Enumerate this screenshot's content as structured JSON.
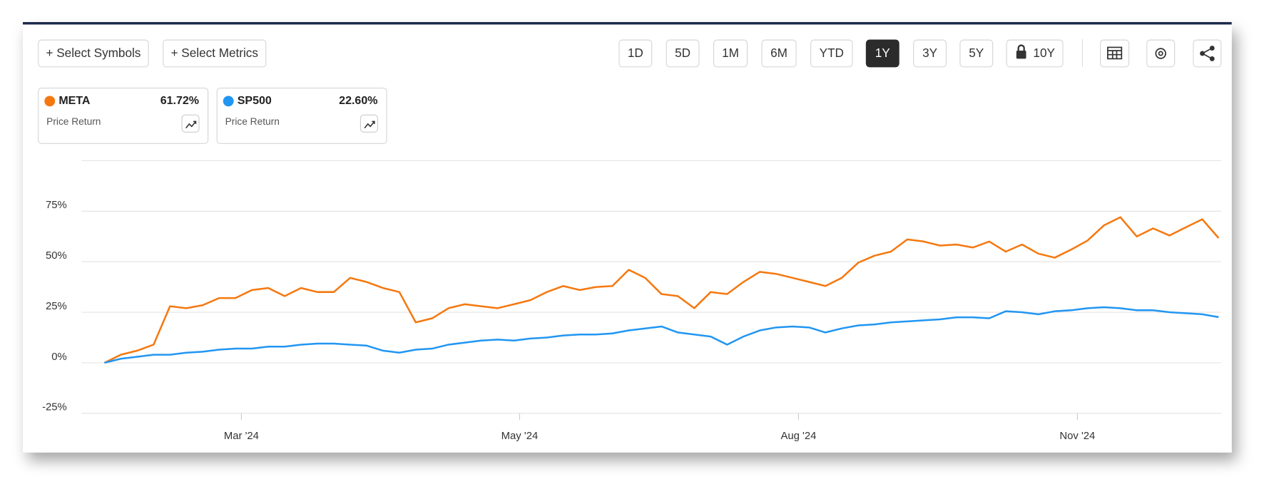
{
  "toolbar": {
    "buttons": [
      "+ Select Symbols",
      "+ Select Metrics"
    ],
    "periods": [
      "1D",
      "5D",
      "1M",
      "6M",
      "YTD",
      "1Y",
      "3Y",
      "5Y",
      "10Y"
    ],
    "selected": "1Y"
  },
  "chart_data": {
    "type": "line",
    "xlim": [
      0,
      68
    ],
    "xticks": [
      {
        "value": 8.36,
        "label": "Mar '24"
      },
      {
        "value": 25.34,
        "label": "May '24"
      },
      {
        "value": 42.36,
        "label": "Aug '24"
      },
      {
        "value": 59.38,
        "label": "Nov '24"
      }
    ],
    "ylim": [
      -25,
      100
    ],
    "yticks": [
      {
        "value": -25,
        "label": "-25%"
      },
      {
        "value": 0,
        "label": "0%"
      },
      {
        "value": 25,
        "label": "25%"
      },
      {
        "value": 50,
        "label": "50%"
      },
      {
        "value": 75,
        "label": "75%"
      }
    ],
    "grid": true,
    "series": [
      {
        "name": "META",
        "color": "#f5780f",
        "metric": "Price Return",
        "return_label": "61.72%",
        "values": [
          0,
          4,
          6,
          9,
          28,
          27,
          28.5,
          32,
          32,
          36,
          37,
          33,
          37,
          35,
          35,
          42,
          40,
          37,
          35,
          20,
          22,
          27,
          29,
          28,
          27,
          29,
          31,
          35,
          38,
          36,
          37.5,
          38,
          46,
          42,
          34,
          33,
          27,
          35,
          34,
          40,
          45,
          44,
          42,
          40,
          38,
          42,
          49.5,
          53,
          55,
          61,
          60,
          58,
          58.5,
          57,
          60,
          55,
          58.5,
          54,
          52,
          56,
          60.5,
          68,
          72,
          62.5,
          66.5,
          63,
          67,
          71,
          61.7
        ]
      },
      {
        "name": "SP500",
        "color": "#2196f3",
        "metric": "Price Return",
        "return_label": "22.60%",
        "values": [
          0,
          2,
          3,
          4,
          4,
          5,
          5.5,
          6.5,
          7,
          7,
          8,
          8,
          9,
          9.5,
          9.5,
          9,
          8.5,
          6,
          5,
          6.5,
          7,
          9,
          10,
          11,
          11.5,
          11,
          12,
          12.5,
          13.5,
          14,
          14,
          14.5,
          16,
          17,
          18,
          15,
          14,
          13,
          9,
          13,
          16,
          17.5,
          18,
          17.5,
          15,
          17,
          18.5,
          19,
          20,
          20.5,
          21,
          21.5,
          22.5,
          22.5,
          22,
          25.5,
          25,
          24,
          25.5,
          26,
          27,
          27.5,
          27,
          26,
          26,
          25,
          24.5,
          24,
          22.6
        ]
      }
    ]
  }
}
